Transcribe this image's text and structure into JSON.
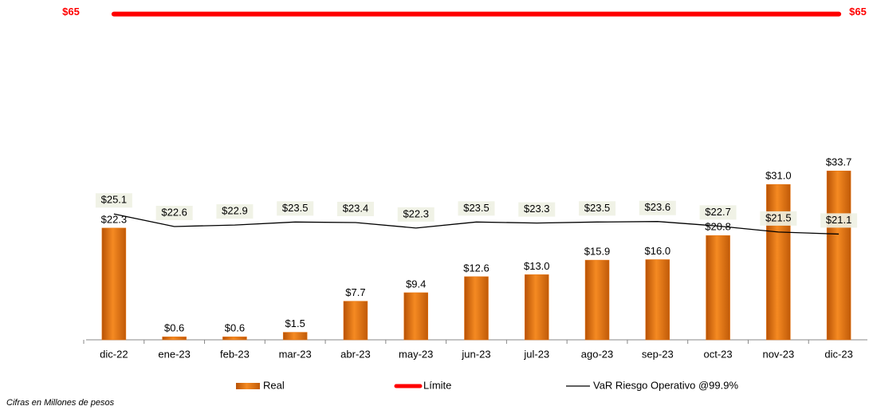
{
  "chart_data": {
    "type": "bar",
    "categories": [
      "dic-22",
      "ene-23",
      "feb-23",
      "mar-23",
      "abr-23",
      "may-23",
      "jun-23",
      "jul-23",
      "ago-23",
      "sep-23",
      "oct-23",
      "nov-23",
      "dic-23"
    ],
    "series": [
      {
        "name": "Real",
        "type": "bar",
        "color": "#e8730e",
        "values": [
          22.3,
          0.6,
          0.6,
          1.5,
          7.7,
          9.4,
          12.6,
          13.0,
          15.9,
          16.0,
          20.8,
          31.0,
          33.7
        ],
        "value_labels": [
          "$22.3",
          "$0.6",
          "$0.6",
          "$1.5",
          "$7.7",
          "$9.4",
          "$12.6",
          "$13.0",
          "$15.9",
          "$16.0",
          "$20.8",
          "$31.0",
          "$33.7"
        ]
      },
      {
        "name": "Límite",
        "type": "limit",
        "color": "#ff0000",
        "values": [
          65,
          65,
          65,
          65,
          65,
          65,
          65,
          65,
          65,
          65,
          65,
          65,
          65
        ],
        "value_labels": [
          "$65",
          null,
          null,
          null,
          null,
          null,
          null,
          null,
          null,
          null,
          null,
          null,
          "$65"
        ]
      },
      {
        "name": "VaR Riesgo Operativo @99.9%",
        "type": "line",
        "color": "#000000",
        "values": [
          25.1,
          22.6,
          22.9,
          23.5,
          23.4,
          22.3,
          23.5,
          23.3,
          23.5,
          23.6,
          22.7,
          21.5,
          21.1
        ],
        "value_labels": [
          "$25.1",
          "$22.6",
          "$22.9",
          "$23.5",
          "$23.4",
          "$22.3",
          "$23.5",
          "$23.3",
          "$23.5",
          "$23.6",
          "$22.7",
          "$21.5",
          "$21.1"
        ]
      }
    ],
    "ylim": [
      0,
      67
    ],
    "note": "Cifras en Millones de pesos"
  }
}
